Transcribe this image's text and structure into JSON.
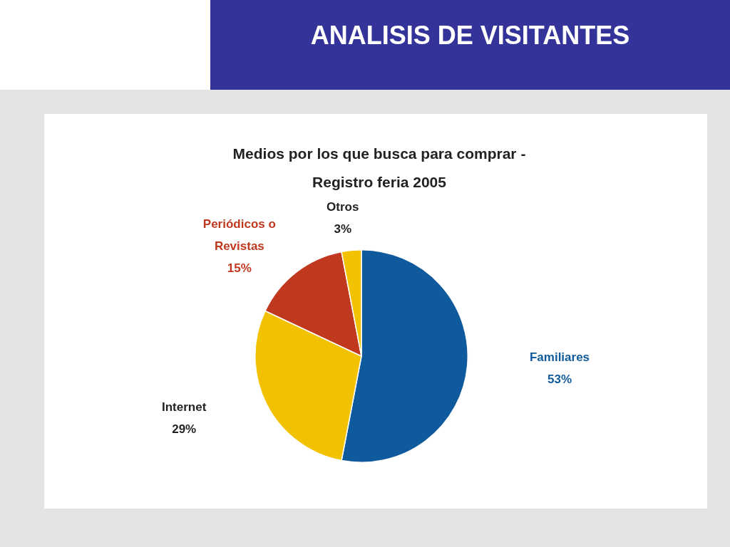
{
  "chart_data": {
    "type": "pie",
    "title": "ANALISIS DE VISITANTES",
    "subtitle": "Medios por los que busca para comprar -\nRegistro feria 2005",
    "categories": [
      "Familiares",
      "Internet",
      "Periódicos o Revistas",
      "Otros"
    ],
    "values": [
      53,
      29,
      15,
      3
    ],
    "colors": [
      "#0f5a9c",
      "#f2c200",
      "#c0391e",
      "#f2c200"
    ],
    "value_labels": [
      "53%",
      "29%",
      "15%",
      "3%"
    ],
    "legend": false
  }
}
